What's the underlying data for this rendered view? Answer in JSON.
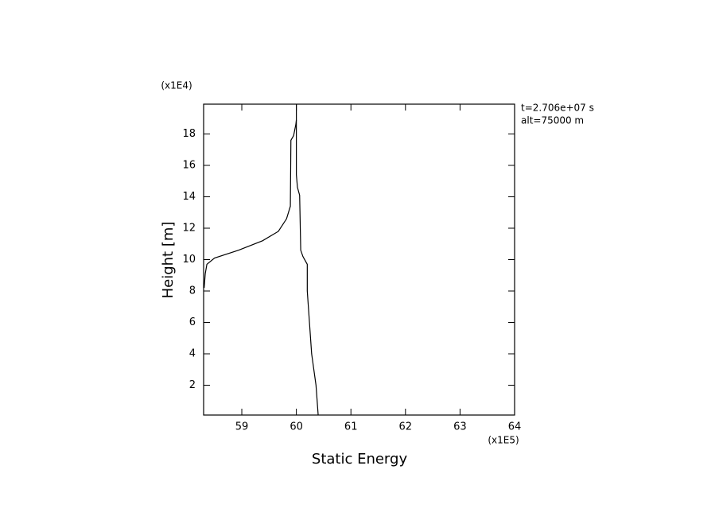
{
  "chart_data": {
    "type": "line",
    "xlabel": "Static Energy",
    "ylabel": "Height [m]",
    "x_multiplier": "(x1E5)",
    "y_multiplier": "(x1E4)",
    "annotations": [
      "t=2.706e+07 s",
      "alt=75000 m"
    ],
    "xlim": [
      58.3,
      64
    ],
    "xticks": [
      59,
      60,
      61,
      62,
      63,
      64
    ],
    "ylim": [
      0.1,
      19.9
    ],
    "yticks": [
      2,
      4,
      6,
      8,
      10,
      12,
      14,
      16,
      18
    ],
    "color": "#000000",
    "series": [
      {
        "x": [
          60.4,
          60.36,
          60.28,
          60.24,
          60.2,
          60.2,
          60.2,
          60.12,
          60.08,
          60.06,
          60.02,
          60.0,
          60.0
        ],
        "values": [
          0.1,
          2.0,
          4.0,
          6.0,
          8.0,
          9.1,
          9.7,
          10.2,
          10.6,
          14.1,
          14.6,
          15.4,
          19.9
        ]
      },
      {
        "x": [
          58.31,
          58.33,
          58.36,
          58.5,
          58.94,
          59.38,
          59.67,
          59.82,
          59.89,
          59.9,
          59.95,
          59.99,
          60.0
        ],
        "values": [
          8.2,
          9.1,
          9.7,
          10.1,
          10.6,
          11.2,
          11.8,
          12.6,
          13.4,
          17.6,
          17.9,
          18.6,
          18.9
        ]
      }
    ]
  }
}
